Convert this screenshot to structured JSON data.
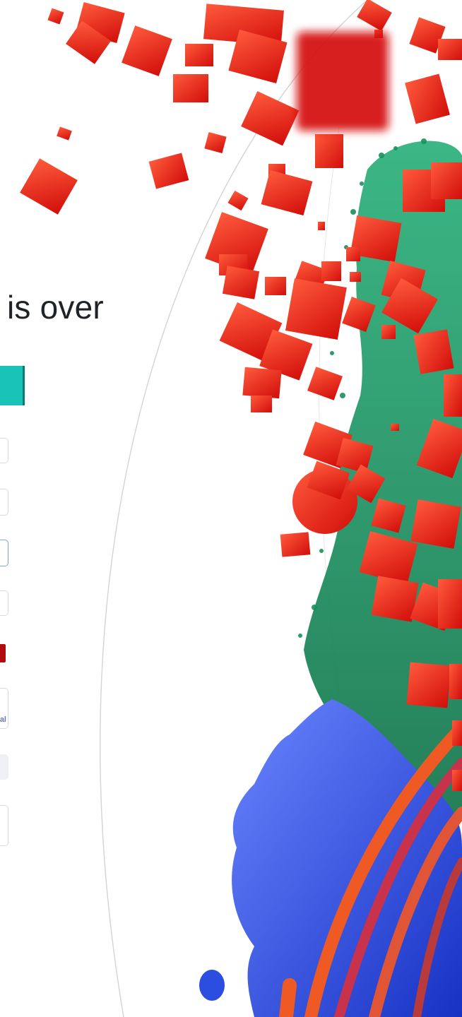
{
  "hero": {
    "headline": "is over"
  },
  "form": {
    "partial_field_text": "al"
  },
  "colors": {
    "accent_teal": "#19c4b6",
    "field_border": "#d7dbe0",
    "focus_border": "#77a8dd",
    "error_red": "#b10b0b",
    "cube_red": "#ff2a14",
    "particle_green": "#1f9a64",
    "fluid_blue": "#2b4fe0",
    "ribbon_orange": "#ef5a24"
  },
  "decor": {
    "illustration": "simulation-art-icon"
  }
}
